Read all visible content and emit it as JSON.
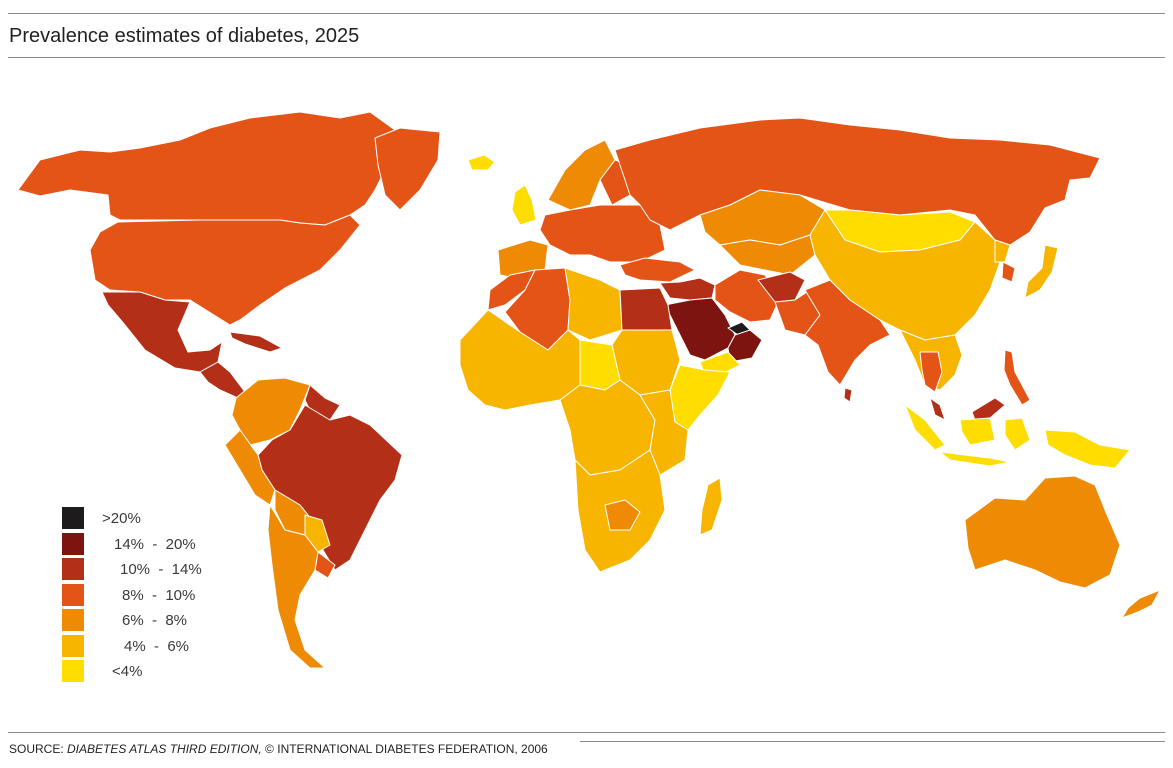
{
  "title": "Prevalence estimates of diabetes, 2025",
  "legend": [
    {
      "label": ">20%",
      "color": "#1d1b1c"
    },
    {
      "label": "14%  -  20%",
      "color": "#7d1410"
    },
    {
      "label": "10%  -  14%",
      "color": "#b42f18"
    },
    {
      "label": "8%  -  10%",
      "color": "#e45417"
    },
    {
      "label": "6%  -  8%",
      "color": "#ee8a04"
    },
    {
      "label": "4%  -  6%",
      "color": "#f7b500"
    },
    {
      "label": "<4%",
      "color": "#ffdd00"
    }
  ],
  "source": {
    "prefix": "SOURCE: ",
    "title": "DIABETES ATLAS THIRD EDITION,",
    "suffix": " © INTERNATIONAL DIABETES FEDERATION, 2006"
  },
  "regions": [
    {
      "name": "Canada",
      "category": "8%  -  10%"
    },
    {
      "name": "United States",
      "category": "8%  -  10%"
    },
    {
      "name": "Greenland",
      "category": "8%  -  10%"
    },
    {
      "name": "Mexico",
      "category": "10%  -  14%"
    },
    {
      "name": "Central America",
      "category": "10%  -  14%"
    },
    {
      "name": "Cuba",
      "category": "10%  -  14%"
    },
    {
      "name": "Northern South America",
      "category": "6%  -  8%"
    },
    {
      "name": "Guianas",
      "category": "10%  -  14%"
    },
    {
      "name": "Brazil",
      "category": "10%  -  14%"
    },
    {
      "name": "Peru",
      "category": "6%  -  8%"
    },
    {
      "name": "Bolivia",
      "category": "6%  -  8%"
    },
    {
      "name": "Paraguay",
      "category": "4%  -  6%"
    },
    {
      "name": "Argentina and Chile",
      "category": "6%  -  8%"
    },
    {
      "name": "Uruguay",
      "category": "8%  -  10%"
    },
    {
      "name": "Iceland",
      "category": "<4%"
    },
    {
      "name": "United Kingdom",
      "category": "<4%"
    },
    {
      "name": "Norway and Sweden",
      "category": "6%  -  8%"
    },
    {
      "name": "Finland",
      "category": "8%  -  10%"
    },
    {
      "name": "Western Europe",
      "category": "8%  -  10%"
    },
    {
      "name": "Iberian Peninsula",
      "category": "6%  -  8%"
    },
    {
      "name": "Russia",
      "category": "8%  -  10%"
    },
    {
      "name": "Kazakhstan",
      "category": "6%  -  8%"
    },
    {
      "name": "Central Asia",
      "category": "6%  -  8%"
    },
    {
      "name": "Turkey",
      "category": "8%  -  10%"
    },
    {
      "name": "Middle East",
      "category": "10%  -  14%"
    },
    {
      "name": "Saudi Arabia",
      "category": "14%  -  20%"
    },
    {
      "name": "United Arab Emirates",
      "category": ">20%"
    },
    {
      "name": "Oman",
      "category": "14%  -  20%"
    },
    {
      "name": "Yemen",
      "category": "<4%"
    },
    {
      "name": "Iran",
      "category": "8%  -  10%"
    },
    {
      "name": "Afghanistan",
      "category": "10%  -  14%"
    },
    {
      "name": "Pakistan",
      "category": "8%  -  10%"
    },
    {
      "name": "India",
      "category": "8%  -  10%"
    },
    {
      "name": "Sri Lanka",
      "category": "10%  -  14%"
    },
    {
      "name": "Mongolia",
      "category": "<4%"
    },
    {
      "name": "China",
      "category": "4%  -  6%"
    },
    {
      "name": "North Korea",
      "category": "4%  -  6%"
    },
    {
      "name": "South Korea",
      "category": "8%  -  10%"
    },
    {
      "name": "Japan",
      "category": "4%  -  6%"
    },
    {
      "name": "Southeast Asia",
      "category": "4%  -  6%"
    },
    {
      "name": "Thailand",
      "category": "8%  -  10%"
    },
    {
      "name": "Malaysia",
      "category": "10%  -  14%"
    },
    {
      "name": "Philippines",
      "category": "8%  -  10%"
    },
    {
      "name": "Indonesia",
      "category": "<4%"
    },
    {
      "name": "Papua New Guinea",
      "category": "<4%"
    },
    {
      "name": "Australia",
      "category": "6%  -  8%"
    },
    {
      "name": "New Zealand",
      "category": "6%  -  8%"
    },
    {
      "name": "Morocco",
      "category": "8%  -  10%"
    },
    {
      "name": "Algeria",
      "category": "8%  -  10%"
    },
    {
      "name": "Libya",
      "category": "4%  -  6%"
    },
    {
      "name": "Egypt",
      "category": "10%  -  14%"
    },
    {
      "name": "Sudan",
      "category": "4%  -  6%"
    },
    {
      "name": "Chad",
      "category": "<4%"
    },
    {
      "name": "Ethiopia and Somalia",
      "category": "<4%"
    },
    {
      "name": "West Africa",
      "category": "4%  -  6%"
    },
    {
      "name": "Central Africa",
      "category": "4%  -  6%"
    },
    {
      "name": "East Africa",
      "category": "4%  -  6%"
    },
    {
      "name": "Southern Africa",
      "category": "4%  -  6%"
    },
    {
      "name": "Zimbabwe",
      "category": "6%  -  8%"
    },
    {
      "name": "Madagascar",
      "category": "4%  -  6%"
    }
  ]
}
